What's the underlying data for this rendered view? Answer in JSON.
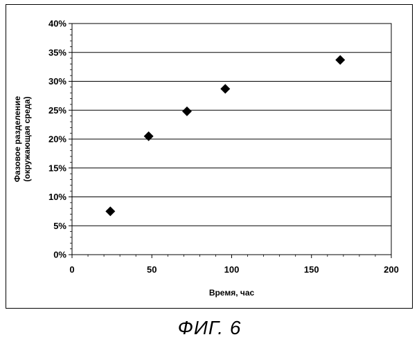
{
  "chart_data": {
    "type": "scatter",
    "title": "",
    "xlabel": "Время, час",
    "ylabel_lines": [
      "Фазовое разделение",
      "(окружающая среда)"
    ],
    "xlim": [
      0,
      200
    ],
    "ylim": [
      0,
      40
    ],
    "x_ticks": [
      0,
      50,
      100,
      150,
      200
    ],
    "y_ticks": [
      0,
      5,
      10,
      15,
      20,
      25,
      30,
      35,
      40
    ],
    "y_tick_labels": [
      "0%",
      "5%",
      "10%",
      "15%",
      "20%",
      "25%",
      "30%",
      "35%",
      "40%"
    ],
    "grid": "horizontal",
    "marker": "diamond",
    "marker_color": "#000000",
    "series": [
      {
        "x": [
          24,
          48,
          72,
          96,
          168
        ],
        "y": [
          7.5,
          20.5,
          24.8,
          28.7,
          33.7
        ]
      }
    ]
  },
  "caption": "ФИГ. 6"
}
